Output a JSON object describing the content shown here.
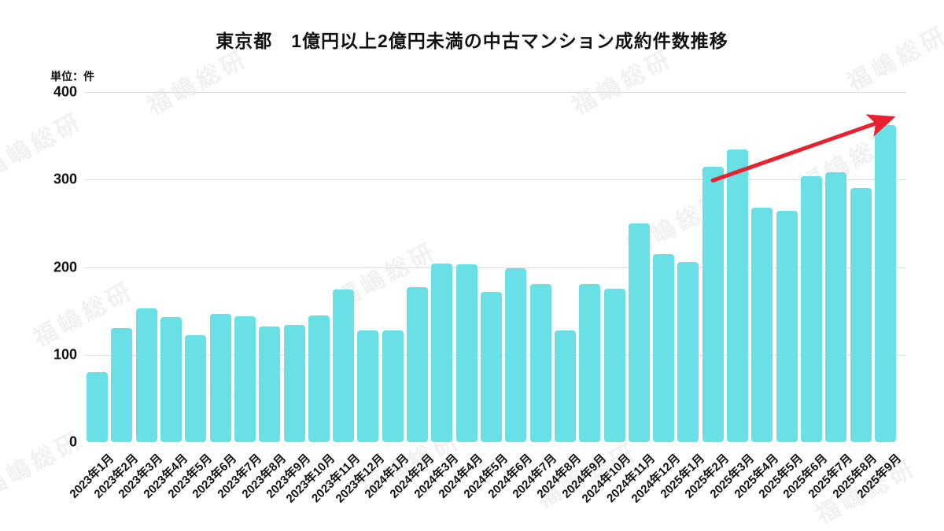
{
  "title": "東京都　1億円以上2億円未満の中古マンション成約件数推移",
  "unit_label": "単位：件",
  "watermark_text": "福嶋総研",
  "chart_data": {
    "type": "bar",
    "title": "東京都　1億円以上2億円未満の中古マンション成約件数推移",
    "ylabel": "件",
    "xlabel": "",
    "ylim": [
      0,
      400
    ],
    "yticks": [
      0,
      100,
      200,
      300,
      400
    ],
    "grid": "horizontal",
    "legend": "none",
    "bar_color": "#69e0e6",
    "gridline_color": "#dcdcdc",
    "categories": [
      "2023年1月",
      "2023年2月",
      "2023年3月",
      "2023年4月",
      "2023年5月",
      "2023年6月",
      "2023年7月",
      "2023年8月",
      "2023年9月",
      "2023年10月",
      "2023年11月",
      "2023年12月",
      "2024年1月",
      "2024年2月",
      "2024年3月",
      "2024年4月",
      "2024年5月",
      "2024年6月",
      "2024年7月",
      "2024年8月",
      "2024年9月",
      "2024年10月",
      "2024年11月",
      "2024年12月",
      "2025年1月",
      "2025年2月",
      "2025年3月",
      "2025年4月",
      "2025年5月",
      "2025年6月",
      "2025年7月",
      "2025年8月",
      "2025年9月"
    ],
    "values": [
      80,
      130,
      153,
      143,
      122,
      147,
      144,
      132,
      134,
      145,
      174,
      128,
      128,
      177,
      204,
      203,
      172,
      199,
      181,
      128,
      181,
      175,
      250,
      215,
      206,
      315,
      334,
      268,
      264,
      304,
      308,
      290,
      362
    ],
    "annotation": {
      "type": "trend-arrow",
      "color": "#e8212e",
      "from": {
        "category_index": 25,
        "value": 299
      },
      "to": {
        "category_index": 32,
        "value": 368
      }
    }
  }
}
